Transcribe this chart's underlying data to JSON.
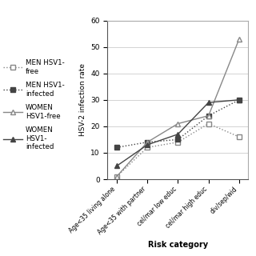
{
  "categories": [
    "Age<35 living alone",
    "Age<35 with partner",
    "cel/mar low educ",
    "cel/mar high educ",
    "div/sep/wid"
  ],
  "series": [
    {
      "label": "MEN HSV1-\nfree",
      "values": [
        1,
        12,
        14,
        21,
        16
      ],
      "color": "#888888",
      "linestyle": "dotted",
      "marker": "s",
      "marker_filled": false
    },
    {
      "label": "MEN HSV1-\ninfected",
      "values": [
        12,
        14,
        15,
        24,
        30
      ],
      "color": "#444444",
      "linestyle": "dotted",
      "marker": "s",
      "marker_filled": true
    },
    {
      "label": "WOMEN\nHSV1-free",
      "values": [
        1,
        14,
        21,
        24,
        53
      ],
      "color": "#888888",
      "linestyle": "solid",
      "marker": "^",
      "marker_filled": false
    },
    {
      "label": "WOMEN\nHSV1-\ninfected",
      "values": [
        5,
        13,
        17,
        29,
        30
      ],
      "color": "#444444",
      "linestyle": "solid",
      "marker": "^",
      "marker_filled": true
    }
  ],
  "ylabel": "HSV-2 infection rate",
  "xlabel": "Risk category",
  "ylim": [
    0,
    60
  ],
  "yticks": [
    0,
    10,
    20,
    30,
    40,
    50,
    60
  ],
  "background_color": "#ffffff",
  "grid_color": "#cccccc",
  "figsize": [
    3.2,
    3.2
  ],
  "dpi": 100
}
